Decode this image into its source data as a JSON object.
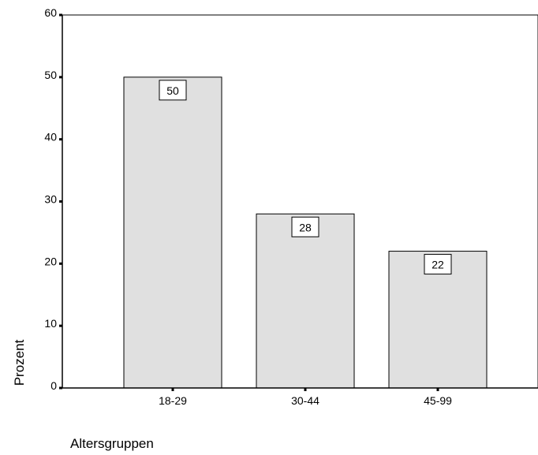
{
  "chart_data": {
    "type": "bar",
    "categories": [
      "18-29",
      "30-44",
      "45-99"
    ],
    "values": [
      50,
      28,
      22
    ],
    "data_labels": [
      "50",
      "28",
      "22"
    ],
    "xlabel": "Altersgruppen",
    "ylabel": "Prozent",
    "ylim": [
      0,
      60
    ],
    "yticks": [
      0,
      10,
      20,
      30,
      40,
      50,
      60
    ],
    "grid": false,
    "legend": "none",
    "colors": {
      "bar_fill": "#e0e0e0",
      "bar_stroke": "#000000",
      "axis": "#000000",
      "label_box": "#ffffff"
    }
  }
}
